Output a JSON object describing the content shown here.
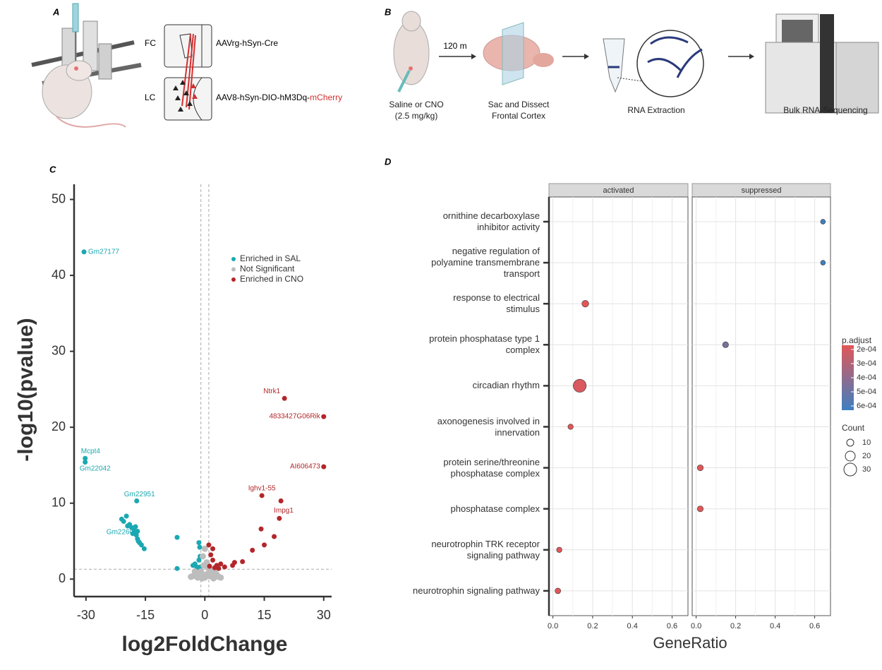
{
  "panel_labels": [
    "A",
    "B",
    "C",
    "D"
  ],
  "panel_a": {
    "fc": "FC",
    "lc": "LC",
    "fc_vector": "AAVrg-hSyn-Cre",
    "lc_vector": [
      "AAV8-hSyn-DIO-hM3Dq-",
      "mCherry"
    ]
  },
  "panel_b": {
    "interval": "120 m",
    "steps": [
      "Saline or CNO\n(2.5 mg/kg)",
      "Sac and Dissect\nFrontal Cortex",
      "RNA Extraction",
      "Bulk RNA-Sequencing"
    ]
  },
  "chart_data": [
    {
      "type": "scatter",
      "xlabel": "log2FoldChange",
      "ylabel": "-log10(pvalue)",
      "xlim": [
        -33,
        32
      ],
      "ylim": [
        -2.3,
        52
      ],
      "xticks": [
        -30,
        -15,
        0,
        15,
        30
      ],
      "yticks": [
        0,
        10,
        20,
        30,
        40,
        50
      ],
      "x_cutoffs": [
        -1,
        1
      ],
      "y_cutoff": 1.3,
      "legend": "upper right",
      "series": [
        {
          "name": "Enriched in SAL",
          "color": "#1ba8b2",
          "x": [
            -30.5,
            -30.2,
            -30.2,
            -17.2,
            -19.5,
            -21,
            -20.5,
            -19.8,
            -19,
            -18.5,
            -18,
            -17.5,
            -17.8,
            -17.3,
            -17,
            -16.8,
            -16.5,
            -16,
            -15.3,
            -18.2,
            -17,
            -7,
            -7,
            -2,
            -1.5,
            -1.2,
            -1.5,
            -1.1,
            -2.5,
            -3,
            -1.3,
            -2
          ],
          "values": [
            43.1,
            15.9,
            15.4,
            10.3,
            7.0,
            7.9,
            7.6,
            8.3,
            7.2,
            6.8,
            6.6,
            6.9,
            6.2,
            5.8,
            5.3,
            5.0,
            4.8,
            4.5,
            4.0,
            6.0,
            6.3,
            5.5,
            1.4,
            1.5,
            2.5,
            3.0,
            4.8,
            1.6,
            2.0,
            1.8,
            4.2,
            1.6
          ],
          "labels": [
            "Gm27177",
            "Mcpt4",
            "Gm22042",
            "Gm22951",
            "Gm2260",
            null,
            null,
            null,
            null,
            null,
            null,
            null,
            null,
            null,
            null,
            null,
            null,
            null,
            null,
            null,
            null,
            null,
            null,
            null,
            null,
            null,
            null,
            null,
            null,
            null,
            null,
            null
          ]
        },
        {
          "name": "Not Significant",
          "color": "#bdbdbd",
          "x": [
            -2,
            0,
            1,
            -1,
            2,
            -3,
            3,
            0.5,
            -0.5,
            0,
            1.5,
            -2.5,
            0.3,
            -0.7,
            2.5,
            -1.8,
            -3.5,
            3.5,
            -1.2,
            1.2,
            0.8,
            -0.3,
            2.2,
            -2.2,
            4
          ],
          "values": [
            0.5,
            0.2,
            0.8,
            1.0,
            0.3,
            0.4,
            0.6,
            2.2,
            3.0,
            4.0,
            1.2,
            1.0,
            0.6,
            0.1,
            0.9,
            0.2,
            0.3,
            0.3,
            0.5,
            0.4,
            1.5,
            1.8,
            0.1,
            0.7,
            0.2
          ],
          "labels": [
            null,
            null,
            null,
            null,
            null,
            null,
            null,
            null,
            null,
            null,
            null,
            null,
            null,
            null,
            null,
            null,
            null,
            null,
            null,
            null,
            null,
            null,
            null,
            null,
            null
          ]
        },
        {
          "name": "Enriched in CNO",
          "color": "#b3262a",
          "x": [
            20.1,
            30,
            30,
            14.4,
            19.2,
            18.8,
            17.5,
            15.0,
            14.2,
            12.0,
            9.5,
            7.5,
            7.0,
            5,
            4,
            3,
            2,
            1.5,
            2.5,
            1.2,
            3.5,
            2,
            1
          ],
          "values": [
            23.8,
            21.4,
            14.8,
            11.0,
            10.3,
            8.0,
            5.6,
            4.5,
            6.6,
            3.8,
            2.3,
            2.2,
            1.8,
            1.6,
            2.0,
            1.8,
            2.5,
            3.2,
            1.5,
            1.7,
            1.4,
            4.0,
            4.5
          ],
          "labels": [
            "Ntrk1",
            "4833427G06Rik",
            "AI606473",
            "Ighv1-55",
            "Impg1",
            null,
            null,
            null,
            null,
            null,
            null,
            null,
            null,
            null,
            null,
            null,
            null,
            null,
            null,
            null,
            null,
            null,
            null
          ]
        }
      ]
    },
    {
      "type": "dot",
      "xlabel": "GeneRatio",
      "categories": [
        "ornithine decarboxylase\ninhibitor activity",
        "negative regulation of\npolyamine transmembrane\ntransport",
        "response to electrical\nstimulus",
        "protein phosphatase type 1\ncomplex",
        "circadian rhythm",
        "axonogenesis involved in\ninnervation",
        "protein serine/threonine\nphosphatase complex",
        "phosphatase complex",
        "neurotrophin TRK receptor\nsignaling pathway",
        "neurotrophin signaling pathway"
      ],
      "xlim": [
        -0.02,
        0.68
      ],
      "xticks": [
        {
          "value": 0,
          "label": "0.0"
        },
        0.2,
        0.4,
        0.6
      ],
      "grid": true,
      "color_label": "p.adjust",
      "color_low": "#e15759",
      "color_high": "#3e7fc1",
      "color_ticks": [
        {
          "value": 0.0002,
          "label": "2e-04"
        },
        {
          "value": 0.0003,
          "label": "3e-04"
        },
        {
          "value": 0.0004,
          "label": "4e-04"
        },
        {
          "value": 0.0005,
          "label": "5e-04"
        },
        {
          "value": 0.0006,
          "label": "6e-04"
        }
      ],
      "size_label": "Count",
      "size_ticks": [
        10,
        20,
        30
      ],
      "series": [
        {
          "name": "activated",
          "values": [
            null,
            null,
            0.163,
            null,
            0.135,
            0.089,
            null,
            null,
            0.032,
            0.025
          ],
          "p_adjust": [
            null,
            null,
            0.0002,
            null,
            0.00022,
            0.0002,
            null,
            null,
            0.0002,
            0.0002
          ],
          "count": [
            null,
            null,
            9,
            null,
            31,
            4,
            null,
            null,
            4,
            5
          ]
        },
        {
          "name": "suppressed",
          "values": [
            0.642,
            0.642,
            null,
            0.149,
            null,
            null,
            0.021,
            0.021,
            null,
            null
          ],
          "p_adjust": [
            0.0006,
            0.0006,
            null,
            0.00045,
            null,
            null,
            0.0002,
            0.0002,
            null,
            null
          ],
          "count": [
            2,
            2,
            null,
            6,
            null,
            null,
            6,
            6,
            null,
            null
          ]
        }
      ]
    }
  ]
}
